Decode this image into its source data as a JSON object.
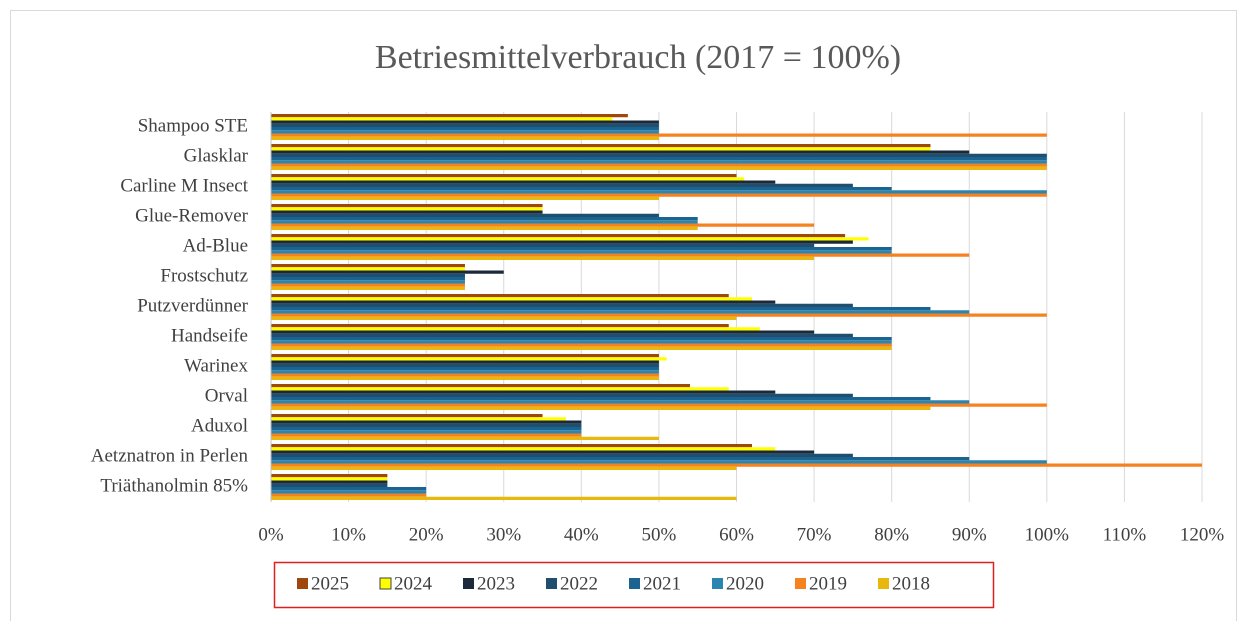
{
  "chart_data": {
    "type": "hbar",
    "title": "Betriesmittelverbrauch (2017 = 100%)",
    "categories": [
      "Shampoo STE",
      "Glasklar",
      "Carline M Insect",
      "Glue-Remover",
      "Ad-Blue",
      "Frostschutz",
      "Putzverdünner",
      "Handseife",
      "Warinex",
      "Orval",
      "Aduxol",
      "Aetznatron in Perlen",
      "Triäthanolmin 85%"
    ],
    "series": [
      {
        "name": "2025",
        "color": "#9e480e",
        "values": [
          46,
          85,
          60,
          35,
          74,
          25,
          59,
          59,
          50,
          54,
          35,
          62,
          15
        ]
      },
      {
        "name": "2024",
        "color": "#ffff00",
        "values": [
          44,
          85,
          61,
          35,
          77,
          25,
          62,
          63,
          51,
          59,
          38,
          65,
          15
        ]
      },
      {
        "name": "2023",
        "color": "#1b2a3a",
        "values": [
          50,
          90,
          65,
          35,
          75,
          30,
          65,
          70,
          50,
          65,
          40,
          70,
          15
        ]
      },
      {
        "name": "2022",
        "color": "#1f4e6e",
        "values": [
          50,
          100,
          75,
          50,
          70,
          25,
          75,
          75,
          50,
          75,
          40,
          75,
          15
        ]
      },
      {
        "name": "2021",
        "color": "#1b6390",
        "values": [
          50,
          100,
          80,
          55,
          80,
          25,
          85,
          80,
          50,
          85,
          40,
          90,
          20
        ]
      },
      {
        "name": "2020",
        "color": "#2a86b0",
        "values": [
          50,
          100,
          100,
          55,
          80,
          25,
          90,
          80,
          50,
          90,
          40,
          100,
          20
        ]
      },
      {
        "name": "2019",
        "color": "#f5821f",
        "values": [
          100,
          100,
          100,
          70,
          90,
          25,
          100,
          80,
          50,
          100,
          40,
          120,
          20
        ]
      },
      {
        "name": "2018",
        "color": "#e8b80c",
        "values": [
          50,
          100,
          50,
          55,
          70,
          25,
          60,
          80,
          50,
          85,
          50,
          60,
          60
        ]
      }
    ],
    "xlim": [
      0,
      120
    ],
    "xticks": [
      {
        "value": 0,
        "label": "0%"
      },
      {
        "value": 10,
        "label": "10%"
      },
      {
        "value": 20,
        "label": "20%"
      },
      {
        "value": 30,
        "label": "30%"
      },
      {
        "value": 40,
        "label": "40%"
      },
      {
        "value": 50,
        "label": "50%"
      },
      {
        "value": 60,
        "label": "60%"
      },
      {
        "value": 70,
        "label": "70%"
      },
      {
        "value": 80,
        "label": "80%"
      },
      {
        "value": 90,
        "label": "90%"
      },
      {
        "value": 100,
        "label": "100%"
      },
      {
        "value": 110,
        "label": "110%"
      },
      {
        "value": 120,
        "label": "120%"
      }
    ],
    "grid": true
  }
}
